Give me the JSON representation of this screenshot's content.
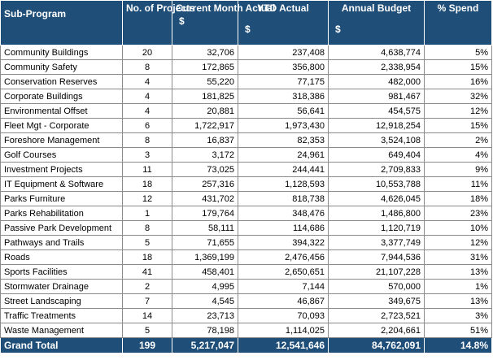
{
  "headers": {
    "sub_program": "Sub-Program",
    "no_of_projects": "No. of Projects",
    "current_month_actual": "Current Month Actual",
    "current_month_unit": "$",
    "ytd_actual": "YTD Actual",
    "ytd_unit": "$",
    "annual_budget": "Annual Budget",
    "annual_budget_unit": "$",
    "pct_spend": "% Spend"
  },
  "rows": [
    {
      "name": "Community Buildings",
      "projects": "20",
      "month": "32,706",
      "ytd": "237,408",
      "budget": "4,638,774",
      "spend": "5%"
    },
    {
      "name": "Community Safety",
      "projects": "8",
      "month": "172,865",
      "ytd": "356,800",
      "budget": "2,338,954",
      "spend": "15%"
    },
    {
      "name": "Conservation Reserves",
      "projects": "4",
      "month": "55,220",
      "ytd": "77,175",
      "budget": "482,000",
      "spend": "16%"
    },
    {
      "name": "Corporate Buildings",
      "projects": "4",
      "month": "181,825",
      "ytd": "318,386",
      "budget": "981,467",
      "spend": "32%"
    },
    {
      "name": "Environmental Offset",
      "projects": "4",
      "month": "20,881",
      "ytd": "56,641",
      "budget": "454,575",
      "spend": "12%"
    },
    {
      "name": "Fleet Mgt - Corporate",
      "projects": "6",
      "month": "1,722,917",
      "ytd": "1,973,430",
      "budget": "12,918,254",
      "spend": "15%"
    },
    {
      "name": "Foreshore Management",
      "projects": "8",
      "month": "16,837",
      "ytd": "82,353",
      "budget": "3,524,108",
      "spend": "2%"
    },
    {
      "name": "Golf Courses",
      "projects": "3",
      "month": "3,172",
      "ytd": "24,961",
      "budget": "649,404",
      "spend": "4%"
    },
    {
      "name": "Investment Projects",
      "projects": "11",
      "month": "73,025",
      "ytd": "244,441",
      "budget": "2,709,833",
      "spend": "9%"
    },
    {
      "name": "IT Equipment & Software",
      "projects": "18",
      "month": "257,316",
      "ytd": "1,128,593",
      "budget": "10,553,788",
      "spend": "11%"
    },
    {
      "name": "Parks Furniture",
      "projects": "12",
      "month": "431,702",
      "ytd": "818,738",
      "budget": "4,626,045",
      "spend": "18%"
    },
    {
      "name": "Parks Rehabilitation",
      "projects": "1",
      "month": "179,764",
      "ytd": "348,476",
      "budget": "1,486,800",
      "spend": "23%"
    },
    {
      "name": "Passive Park Development",
      "projects": "8",
      "month": "58,111",
      "ytd": "114,686",
      "budget": "1,120,719",
      "spend": "10%"
    },
    {
      "name": "Pathways and Trails",
      "projects": "5",
      "month": "71,655",
      "ytd": "394,322",
      "budget": "3,377,749",
      "spend": "12%"
    },
    {
      "name": "Roads",
      "projects": "18",
      "month": "1,369,199",
      "ytd": "2,476,456",
      "budget": "7,944,536",
      "spend": "31%"
    },
    {
      "name": "Sports Facilities",
      "projects": "41",
      "month": "458,401",
      "ytd": "2,650,651",
      "budget": "21,107,228",
      "spend": "13%"
    },
    {
      "name": "Stormwater Drainage",
      "projects": "2",
      "month": "4,995",
      "ytd": "7,144",
      "budget": "570,000",
      "spend": "1%"
    },
    {
      "name": "Street Landscaping",
      "projects": "7",
      "month": "4,545",
      "ytd": "46,867",
      "budget": "349,675",
      "spend": "13%"
    },
    {
      "name": "Traffic Treatments",
      "projects": "14",
      "month": "23,713",
      "ytd": "70,093",
      "budget": "2,723,521",
      "spend": "3%"
    },
    {
      "name": "Waste Management",
      "projects": "5",
      "month": "78,198",
      "ytd": "1,114,025",
      "budget": "2,204,661",
      "spend": "51%"
    }
  ],
  "total": {
    "label": "Grand Total",
    "projects": "199",
    "month": "5,217,047",
    "ytd": "12,541,646",
    "budget": "84,762,091",
    "spend": "14.8%"
  },
  "colors": {
    "header_bg": "#1f4e79",
    "header_text": "#ffffff",
    "grid": "#8a8a8a"
  }
}
